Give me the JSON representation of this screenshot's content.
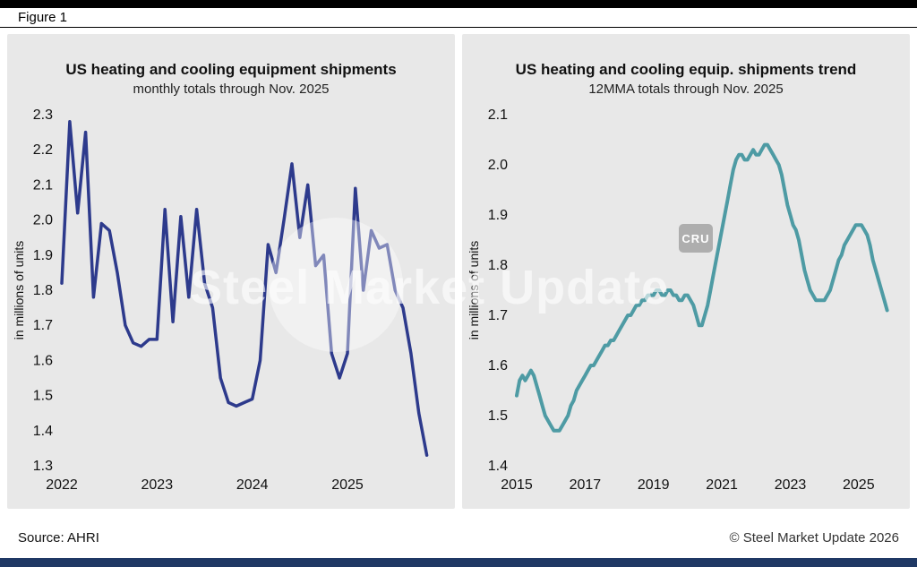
{
  "figure_label": "Figure 1",
  "watermark": {
    "text": "Steel Market Update",
    "badge": "CRU"
  },
  "footer": {
    "source": "Source: AHRI",
    "copyright": "© Steel Market Update 2026"
  },
  "colors": {
    "panel_bg": "#e8e8e8",
    "top_bar": "#000000",
    "bottom_bar": "#1f3864",
    "left_line": "#2d3a8c",
    "right_line": "#4e9ba4"
  },
  "chart_data": [
    {
      "type": "line",
      "title": "US heating and cooling equipment shipments",
      "subtitle": "monthly totals through Nov. 2025",
      "ylabel": "in millions of units",
      "ylim": [
        1.3,
        2.3
      ],
      "yticks": [
        1.3,
        1.4,
        1.5,
        1.6,
        1.7,
        1.8,
        1.9,
        2.0,
        2.1,
        2.2,
        2.3
      ],
      "xlim": [
        2022.0,
        2025.95
      ],
      "xticks": [
        2022,
        2023,
        2024,
        2025
      ],
      "x_unit": "monthly",
      "x_start_label": "Jan 2022",
      "x_end_label": "Nov 2025",
      "line_color": "#2d3a8c",
      "line_width": 3.5,
      "grid": false,
      "legend": "none",
      "values": [
        1.82,
        2.28,
        2.02,
        2.25,
        1.78,
        1.99,
        1.97,
        1.85,
        1.7,
        1.65,
        1.64,
        1.66,
        1.66,
        2.03,
        1.71,
        2.01,
        1.78,
        2.03,
        1.82,
        1.75,
        1.55,
        1.48,
        1.47,
        1.48,
        1.49,
        1.6,
        1.93,
        1.85,
        2.0,
        2.16,
        1.95,
        2.1,
        1.87,
        1.9,
        1.62,
        1.55,
        1.62,
        2.09,
        1.8,
        1.97,
        1.92,
        1.93,
        1.8,
        1.75,
        1.62,
        1.45,
        1.33
      ]
    },
    {
      "type": "line",
      "title": "US heating and cooling equip. shipments trend",
      "subtitle": "12MMA totals through Nov. 2025",
      "ylabel": "in millions of units",
      "ylim": [
        1.4,
        2.1
      ],
      "yticks": [
        1.4,
        1.5,
        1.6,
        1.7,
        1.8,
        1.9,
        2.0,
        2.1
      ],
      "xlim": [
        2015.0,
        2026.0
      ],
      "xticks": [
        2015,
        2017,
        2019,
        2021,
        2023,
        2025
      ],
      "x_unit": "monthly",
      "x_start_label": "Jan 2015",
      "x_end_label": "Nov 2025",
      "line_color": "#4e9ba4",
      "line_width": 4,
      "grid": false,
      "legend": "none",
      "values": [
        1.54,
        1.57,
        1.58,
        1.57,
        1.58,
        1.59,
        1.58,
        1.56,
        1.54,
        1.52,
        1.5,
        1.49,
        1.48,
        1.47,
        1.47,
        1.47,
        1.48,
        1.49,
        1.5,
        1.52,
        1.53,
        1.55,
        1.56,
        1.57,
        1.58,
        1.59,
        1.6,
        1.6,
        1.61,
        1.62,
        1.63,
        1.64,
        1.64,
        1.65,
        1.65,
        1.66,
        1.67,
        1.68,
        1.69,
        1.7,
        1.7,
        1.71,
        1.72,
        1.72,
        1.73,
        1.73,
        1.74,
        1.74,
        1.74,
        1.75,
        1.75,
        1.74,
        1.74,
        1.75,
        1.75,
        1.74,
        1.74,
        1.73,
        1.73,
        1.74,
        1.74,
        1.73,
        1.72,
        1.7,
        1.68,
        1.68,
        1.7,
        1.72,
        1.75,
        1.78,
        1.81,
        1.84,
        1.87,
        1.9,
        1.93,
        1.96,
        1.99,
        2.01,
        2.02,
        2.02,
        2.01,
        2.01,
        2.02,
        2.03,
        2.02,
        2.02,
        2.03,
        2.04,
        2.04,
        2.03,
        2.02,
        2.01,
        2.0,
        1.98,
        1.95,
        1.92,
        1.9,
        1.88,
        1.87,
        1.85,
        1.82,
        1.79,
        1.77,
        1.75,
        1.74,
        1.73,
        1.73,
        1.73,
        1.73,
        1.74,
        1.75,
        1.77,
        1.79,
        1.81,
        1.82,
        1.84,
        1.85,
        1.86,
        1.87,
        1.88,
        1.88,
        1.88,
        1.87,
        1.86,
        1.84,
        1.81,
        1.79,
        1.77,
        1.75,
        1.73,
        1.71
      ]
    }
  ]
}
